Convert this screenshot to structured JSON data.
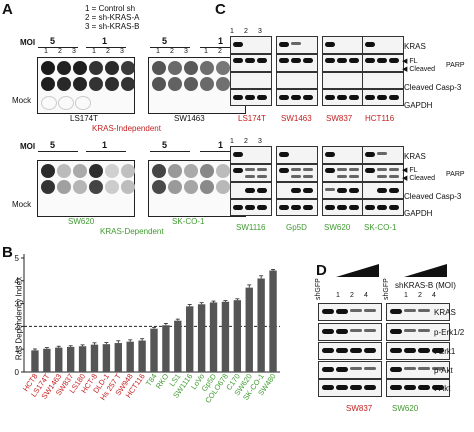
{
  "panel_a": {
    "label": "A",
    "legend": [
      "1 = Control sh",
      "2 = sh-KRAS-A",
      "3 = sh-KRAS-B"
    ],
    "moi_label": "MOI",
    "moi_values": [
      "5",
      "1",
      "5",
      "1"
    ],
    "lanes": [
      "1",
      "2",
      "3"
    ],
    "mock_label": "Mock",
    "top_lines": [
      "LS174T",
      "SW1463"
    ],
    "top_group": "KRAS-Independent",
    "bottom_lines": [
      "SW620",
      "SK-CO-1"
    ],
    "bottom_group": "KRAS-Dependent"
  },
  "panel_b": {
    "label": "B",
    "chart_data": {
      "type": "bar",
      "ylabel": "Ras Dependency Index",
      "ylim": [
        0,
        5
      ],
      "yticks": [
        0,
        1,
        2,
        3,
        4,
        5
      ],
      "threshold": 2,
      "categories": [
        "HCT8",
        "LS174T",
        "SW1463",
        "SW837",
        "LS180",
        "HCT-8",
        "DLD-1",
        "Hs 257 T",
        "SW948",
        "HCT116",
        "T84",
        "RKO",
        "LS1",
        "SW1116",
        "LoVo",
        "Gp5D",
        "COLO678",
        "C170",
        "SW620",
        "SK-CO-1",
        "SW480"
      ],
      "values": [
        0.95,
        1.02,
        1.07,
        1.1,
        1.13,
        1.2,
        1.22,
        1.27,
        1.33,
        1.38,
        1.9,
        2.05,
        2.25,
        2.88,
        2.97,
        3.05,
        3.08,
        3.15,
        3.7,
        4.1,
        4.45
      ],
      "errors": [
        0.06,
        0.05,
        0.06,
        0.05,
        0.06,
        0.08,
        0.07,
        0.1,
        0.08,
        0.08,
        0.06,
        0.08,
        0.07,
        0.08,
        0.07,
        0.06,
        0.05,
        0.06,
        0.12,
        0.12,
        0.05
      ],
      "colors": [
        "#c41e1e",
        "#c41e1e",
        "#c41e1e",
        "#c41e1e",
        "#c41e1e",
        "#c41e1e",
        "#c41e1e",
        "#c41e1e",
        "#c41e1e",
        "#c41e1e",
        "#3f9a2e",
        "#3f9a2e",
        "#3f9a2e",
        "#3f9a2e",
        "#3f9a2e",
        "#3f9a2e",
        "#3f9a2e",
        "#3f9a2e",
        "#3f9a2e",
        "#3f9a2e",
        "#3f9a2e"
      ],
      "bar_color": "#555555"
    }
  },
  "panel_c": {
    "label": "C",
    "lanes": [
      "1",
      "2",
      "3"
    ],
    "top_lines": [
      {
        "name": "LS174T",
        "color": "#c41e1e"
      },
      {
        "name": "SW1463",
        "color": "#c41e1e"
      },
      {
        "name": "SW837",
        "color": "#c41e1e"
      },
      {
        "name": "HCT116",
        "color": "#c41e1e"
      }
    ],
    "bottom_lines": [
      {
        "name": "SW1116",
        "color": "#3f9a2e"
      },
      {
        "name": "Gp5D",
        "color": "#3f9a2e"
      },
      {
        "name": "SW620",
        "color": "#3f9a2e"
      },
      {
        "name": "SK-CO-1",
        "color": "#3f9a2e"
      }
    ],
    "blot_labels": {
      "kras": "KRAS",
      "fl": "FL",
      "cleaved": "Cleaved",
      "parp": "PARP",
      "casp3": "Cleaved Casp-3",
      "gapdh": "GAPDH"
    }
  },
  "panel_d": {
    "label": "D",
    "shgfp": "shGFP",
    "treatment": "shKRAS-B (MOI)",
    "doses": [
      "1",
      "2",
      "4"
    ],
    "blots": [
      "KRAS",
      "p-Erk1/2",
      "t-Erk1",
      "p-Akt",
      "t-Akt"
    ],
    "lines": [
      {
        "name": "SW837",
        "color": "#c41e1e"
      },
      {
        "name": "SW620",
        "color": "#3f9a2e"
      }
    ]
  }
}
